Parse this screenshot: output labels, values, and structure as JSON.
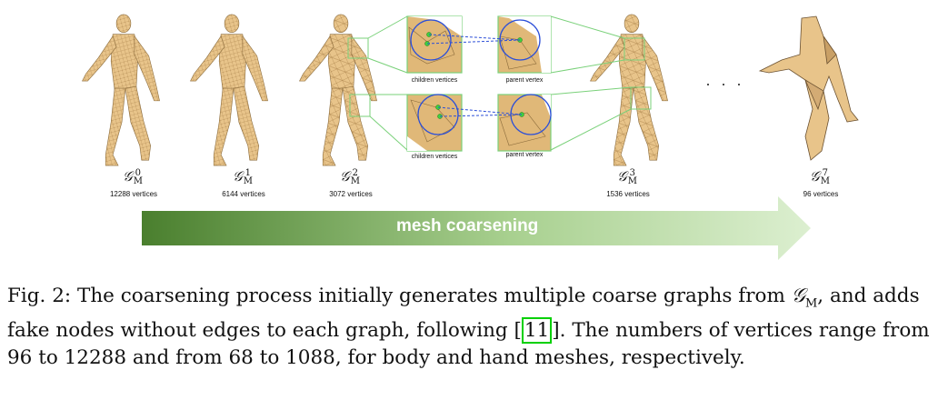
{
  "figure": {
    "graphs": [
      {
        "symbol": "𝒢",
        "sub": "M",
        "sup": "0",
        "vertices": "12288 vertices"
      },
      {
        "symbol": "𝒢",
        "sub": "M",
        "sup": "1",
        "vertices": "6144 vertices"
      },
      {
        "symbol": "𝒢",
        "sub": "M",
        "sup": "2",
        "vertices": "3072 vertices"
      },
      {
        "symbol": "𝒢",
        "sub": "M",
        "sup": "3",
        "vertices": "1536 vertices"
      },
      {
        "symbol": "𝒢",
        "sub": "M",
        "sup": "7",
        "vertices": "96 vertices"
      }
    ],
    "insets": {
      "children_label": "children vertices",
      "parent_label": "parent vertex"
    },
    "ellipsis": "· · ·",
    "arrow_label": "mesh coarsening",
    "colors": {
      "mesh_fill": "#e8c48a",
      "mesh_line": "#9a7a4a",
      "inset_border": "#7ad17a",
      "circle": "#2c4fd8",
      "arrow_dark": "#4a8a32",
      "arrow_light": "#d6ecc8",
      "cite_border": "#00d000"
    }
  },
  "caption": {
    "prefix": "Fig. 2: The coarsening process initially generates multiple coarse graphs from ",
    "gm_symbol": "𝒢",
    "gm_sub": "M",
    "middle": ", and adds fake nodes without edges to each graph, following [",
    "cite": "11",
    "suffix": "]. The numbers of vertices range from 96 to 12288 and from 68 to 1088, for body and hand meshes, respectively."
  }
}
